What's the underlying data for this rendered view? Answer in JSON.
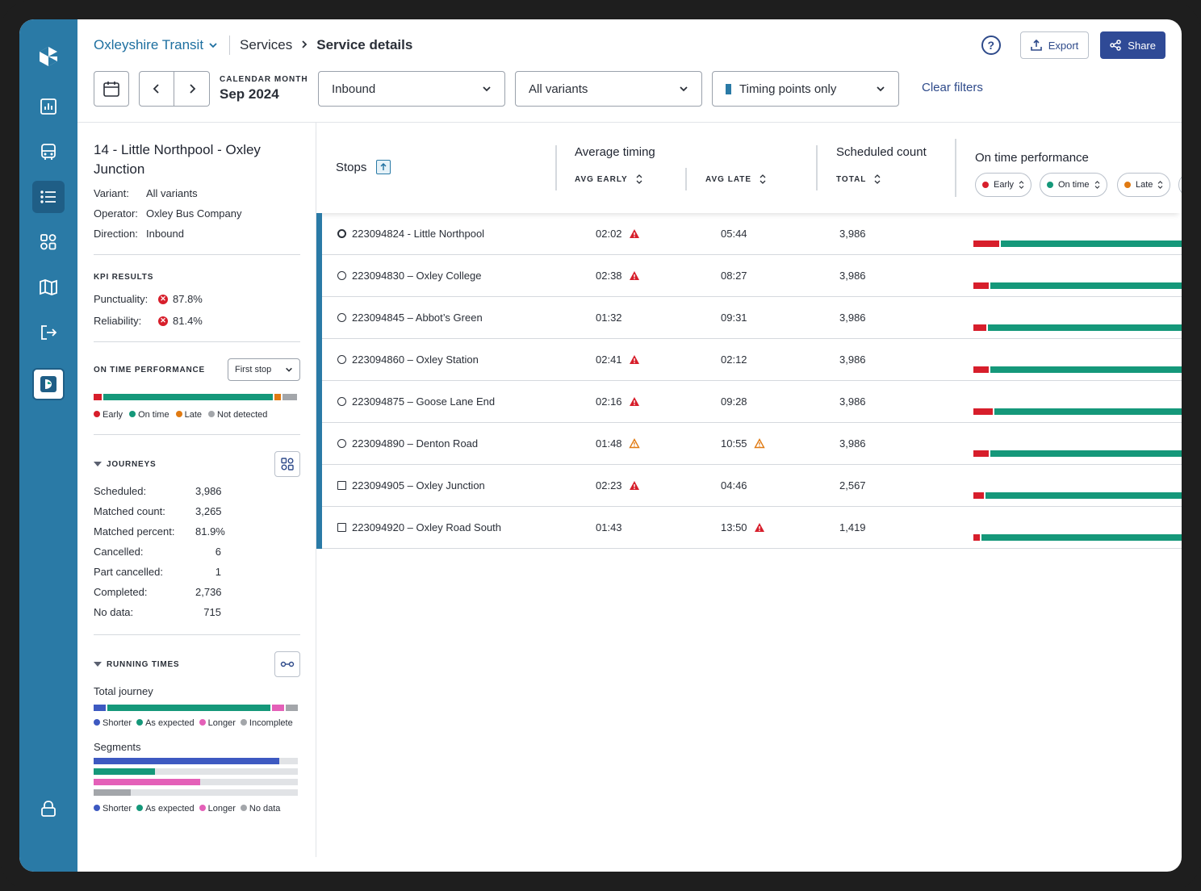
{
  "colors": {
    "rail": "#2a7aa6",
    "accent_blue": "#2f4a96",
    "early": "#d71e2b",
    "on_time": "#15987a",
    "late": "#e07a12",
    "not_detected": "#a3a6aa",
    "shorter": "#3d59c1",
    "longer": "#e460b8"
  },
  "rail": {
    "icons": [
      "logo-icon",
      "reports-icon",
      "bus-icon",
      "list-icon",
      "apps-icon",
      "map-icon",
      "logout-icon",
      "partner-app-icon",
      "lock-icon"
    ]
  },
  "header": {
    "org": "Oxleyshire Transit",
    "breadcrumb": [
      "Services",
      "Service details"
    ],
    "export_label": "Export",
    "share_label": "Share"
  },
  "filters": {
    "calendar_month_label": "CALENDAR MONTH",
    "calendar_month_value": "Sep 2024",
    "direction": "Inbound",
    "variant": "All variants",
    "timing": "Timing points only",
    "clear": "Clear filters"
  },
  "sidebar": {
    "service_title": "14 - Little Northpool - Oxley Junction",
    "details": [
      {
        "label": "Variant:",
        "value": "All variants"
      },
      {
        "label": "Operator:",
        "value": "Oxley Bus Company"
      },
      {
        "label": "Direction:",
        "value": "Inbound"
      }
    ],
    "kpi_heading": "KPI RESULTS",
    "kpis": [
      {
        "label": "Punctuality:",
        "value": "87.8%"
      },
      {
        "label": "Reliability:",
        "value": "81.4%"
      }
    ],
    "otp_heading": "ON TIME PERFORMANCE",
    "otp_select": "First stop",
    "otp_bar": {
      "early": 0.04,
      "on_time": 0.82,
      "late": 0.03,
      "not_detected": 0.07
    },
    "otp_legend": [
      "Early",
      "On time",
      "Late",
      "Not detected"
    ],
    "journeys_heading": "JOURNEYS",
    "journeys": [
      {
        "label": "Scheduled:",
        "value": "3,986"
      },
      {
        "label": "Matched count:",
        "value": "3,265"
      },
      {
        "label": "Matched percent:",
        "value": "81.9%"
      },
      {
        "label": "Cancelled:",
        "value": "6"
      },
      {
        "label": "Part cancelled:",
        "value": "1"
      },
      {
        "label": "Completed:",
        "value": "2,736"
      },
      {
        "label": "No data:",
        "value": "715"
      }
    ],
    "running_heading": "RUNNING TIMES",
    "total_journey_label": "Total journey",
    "total_journey_bar": {
      "shorter": 0.06,
      "as_expected": 0.79,
      "longer": 0.06,
      "incomplete": 0.06
    },
    "total_legend": [
      "Shorter",
      "As expected",
      "Longer",
      "Incomplete"
    ],
    "segments_label": "Segments",
    "segments": [
      {
        "type": "shorter",
        "fraction": 0.91
      },
      {
        "type": "as_expected",
        "fraction": 0.3
      },
      {
        "type": "longer",
        "fraction": 0.52
      },
      {
        "type": "no_data",
        "fraction": 0.18
      }
    ],
    "segments_legend": [
      "Shorter",
      "As expected",
      "Longer",
      "No data"
    ]
  },
  "table": {
    "stops_header": "Stops",
    "avg_header": "Average timing",
    "avg_early": "AVG EARLY",
    "avg_late": "AVG LATE",
    "sched_header": "Scheduled count",
    "total": "TOTAL",
    "otp_header": "On time performance",
    "chips": [
      "Early",
      "On time",
      "Late"
    ],
    "rows": [
      {
        "stop": "223094824 - Little Northpool",
        "icon": "bold-circle",
        "early": "02:02",
        "early_warn": "red",
        "late": "05:44",
        "late_warn": "",
        "total": "3,986",
        "perf_early": 0.12
      },
      {
        "stop": "223094830 – Oxley College",
        "icon": "circle",
        "early": "02:38",
        "early_warn": "red",
        "late": "08:27",
        "late_warn": "",
        "total": "3,986",
        "perf_early": 0.07
      },
      {
        "stop": "223094845 – Abbot’s Green",
        "icon": "circle",
        "early": "01:32",
        "early_warn": "",
        "late": "09:31",
        "late_warn": "",
        "total": "3,986",
        "perf_early": 0.06
      },
      {
        "stop": "223094860 – Oxley Station",
        "icon": "circle",
        "early": "02:41",
        "early_warn": "red",
        "late": "02:12",
        "late_warn": "",
        "total": "3,986",
        "perf_early": 0.07
      },
      {
        "stop": "223094875 – Goose Lane End",
        "icon": "circle",
        "early": "02:16",
        "early_warn": "red",
        "late": "09:28",
        "late_warn": "",
        "total": "3,986",
        "perf_early": 0.09
      },
      {
        "stop": "223094890 – Denton Road",
        "icon": "circle",
        "early": "01:48",
        "early_warn": "orange",
        "late": "10:55",
        "late_warn": "orange",
        "total": "3,986",
        "perf_early": 0.07
      },
      {
        "stop": "223094905 – Oxley Junction",
        "icon": "square",
        "early": "02:23",
        "early_warn": "red",
        "late": "04:46",
        "late_warn": "",
        "total": "2,567",
        "perf_early": 0.05
      },
      {
        "stop": "223094920 – Oxley Road South",
        "icon": "square",
        "early": "01:43",
        "early_warn": "",
        "late": "13:50",
        "late_warn": "red",
        "total": "1,419",
        "perf_early": 0.03
      }
    ]
  }
}
